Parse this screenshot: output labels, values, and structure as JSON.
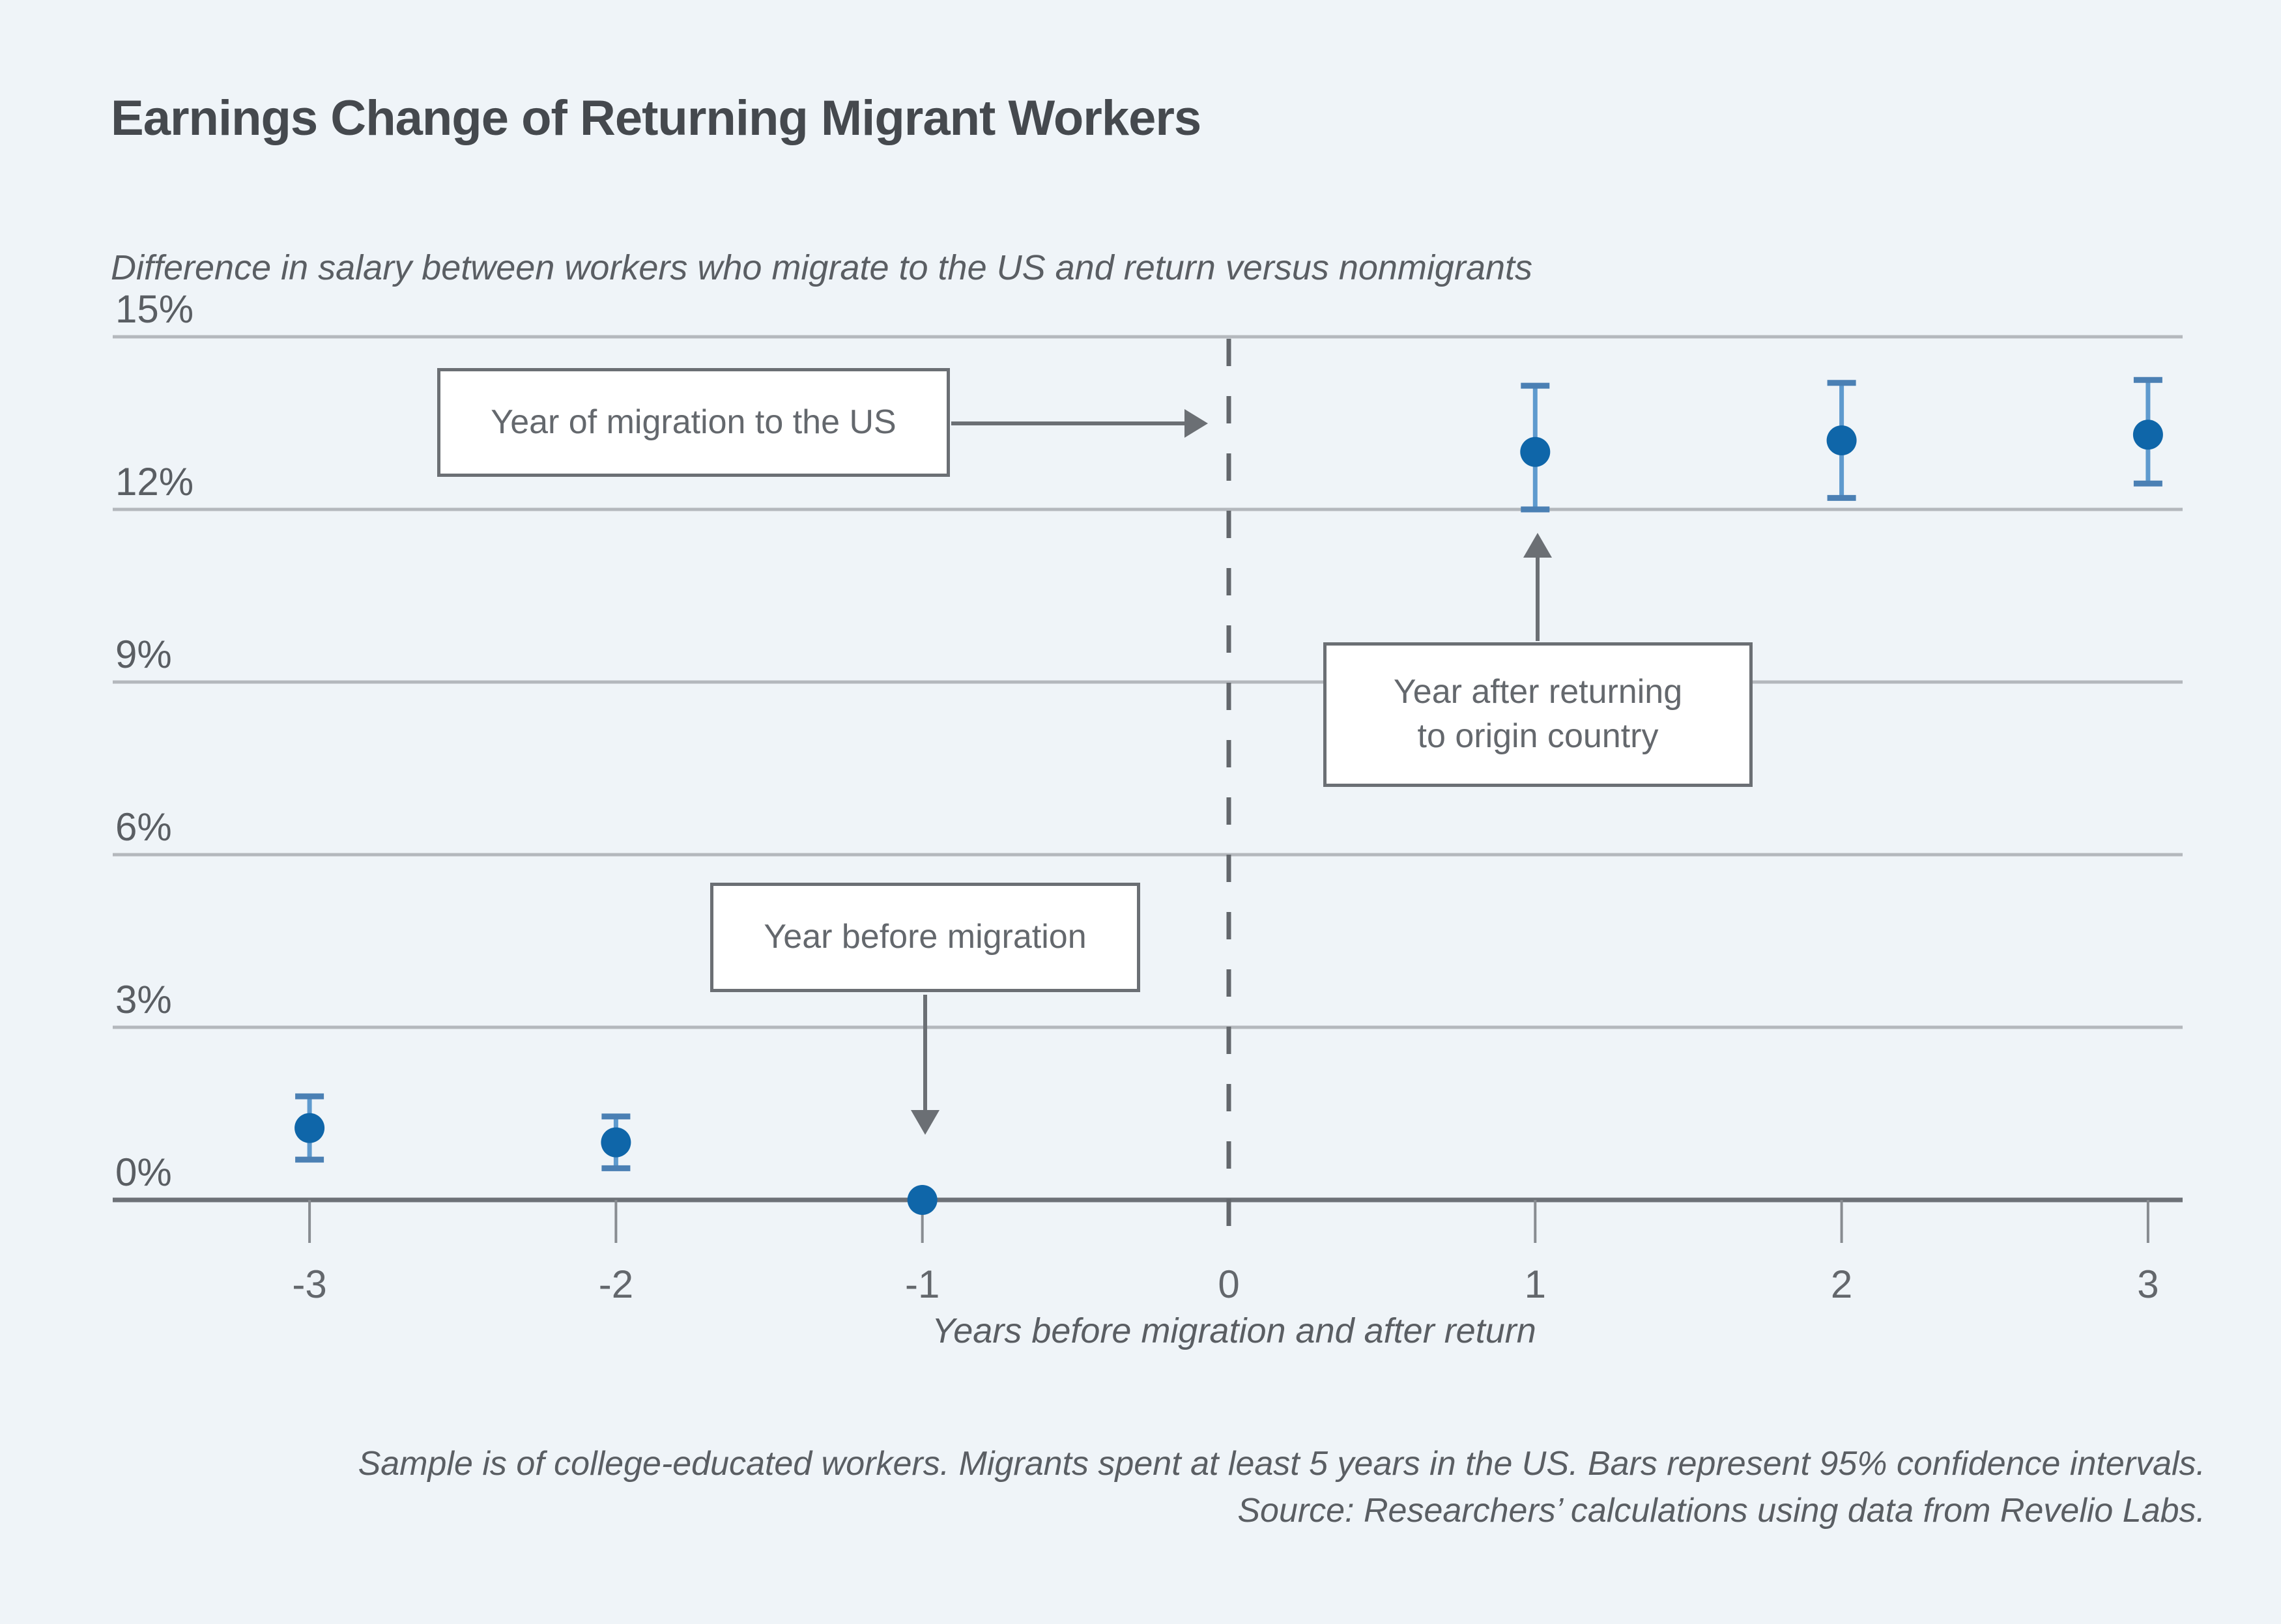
{
  "page": {
    "background_color": "#eff4f8"
  },
  "header": {
    "title": "Earnings Change of Returning Migrant Workers",
    "subtitle": "Difference in salary between workers who migrate to the US and return versus nonmigrants"
  },
  "chart_data": {
    "type": "scatter",
    "x": [
      -3,
      -2,
      -1,
      1,
      2,
      3
    ],
    "series": [
      {
        "name": "Salary difference vs nonmigrants (%)",
        "values": [
          1.25,
          1.0,
          0.0,
          13.0,
          13.2,
          13.3
        ],
        "ci_low": [
          0.7,
          0.55,
          null,
          12.0,
          12.2,
          12.45
        ],
        "ci_high": [
          1.8,
          1.45,
          null,
          14.15,
          14.2,
          14.25
        ]
      }
    ],
    "title": "Earnings Change of Returning Migrant Workers",
    "xlabel": "Years before migration and after return",
    "ylabel": "",
    "ylim": [
      0,
      15
    ],
    "yticks": [
      0,
      3,
      6,
      9,
      12,
      15
    ],
    "ytick_labels": [
      "0%",
      "3%",
      "6%",
      "9%",
      "12%",
      "15%"
    ],
    "xticks": [
      -3,
      -2,
      -1,
      0,
      1,
      2,
      3
    ],
    "xtick_labels": [
      "-3",
      "-2",
      "-1",
      "0",
      "1",
      "2",
      "3"
    ],
    "grid": true,
    "event_line_x": 0,
    "ci_note": "Bars represent 95% confidence intervals",
    "marker_color": "#0f66a9",
    "errorbar_color": "#5e9ace",
    "errorbar_cap_color": "#4b80b4",
    "gridline_color": "#b4b8bd",
    "axis_color": "#6d7177",
    "dashed_line_color": "#63676c",
    "annotation_color": "#6b6f74"
  },
  "annotations": {
    "migration": {
      "label": "Year of migration to the US"
    },
    "before": {
      "label": "Year before migration"
    },
    "after_line1": "Year after returning",
    "after_line2": "to origin country"
  },
  "footer": {
    "note": "Sample is of college-educated workers. Migrants spent at least 5 years in the US. Bars represent 95% confidence intervals.",
    "source": "Source: Researchers’ calculations using data from Revelio Labs."
  }
}
